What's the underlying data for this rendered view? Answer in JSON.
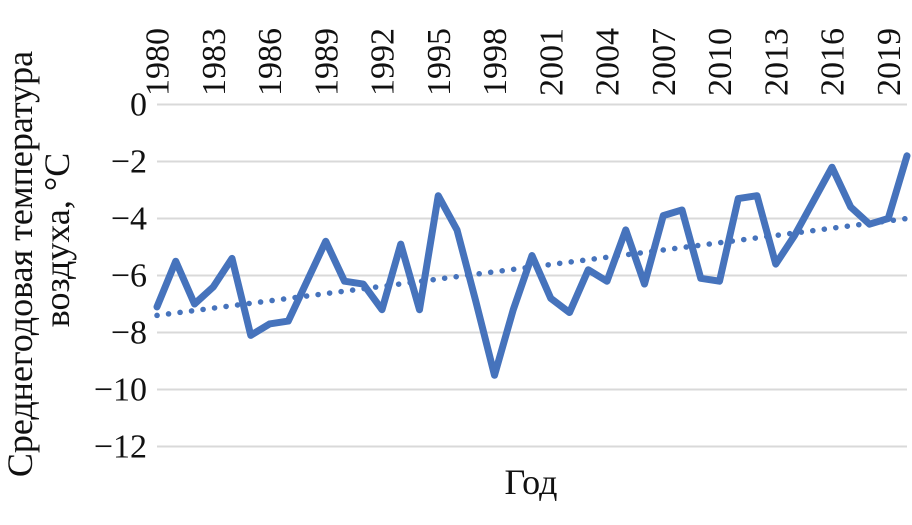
{
  "chart_data": {
    "type": "line",
    "title": "",
    "xlabel": "Год",
    "ylabel_lines": [
      "Среднегодовая температура",
      "воздуха, °С"
    ],
    "x_tick_labels": [
      "1980",
      "1983",
      "1986",
      "1989",
      "1992",
      "1995",
      "1998",
      "2001",
      "2004",
      "2007",
      "2010",
      "2013",
      "2016",
      "2019"
    ],
    "x_tick_years": [
      1980,
      1983,
      1986,
      1989,
      1992,
      1995,
      1998,
      2001,
      2004,
      2007,
      2010,
      2013,
      2016,
      2019
    ],
    "y_tick_labels": [
      "0",
      "−2",
      "−4",
      "−6",
      "−8",
      "−10",
      "−12"
    ],
    "y_tick_values": [
      0,
      -2,
      -4,
      -6,
      -8,
      -10,
      -12
    ],
    "xlim": [
      1980,
      2020
    ],
    "ylim": [
      -12,
      0
    ],
    "grid": "horizontal",
    "legend": "none",
    "colors": {
      "series_blue": "#4673BC",
      "gridline_gray": "#D9D9D9",
      "text_black": "#111111",
      "background": "#FFFFFF"
    },
    "series": [
      {
        "name": "annual-mean-air-temperature",
        "style": "solid",
        "x": [
          1980,
          1981,
          1982,
          1983,
          1984,
          1985,
          1986,
          1987,
          1988,
          1989,
          1990,
          1991,
          1992,
          1993,
          1994,
          1995,
          1996,
          1997,
          1998,
          1999,
          2000,
          2001,
          2002,
          2003,
          2004,
          2005,
          2006,
          2007,
          2008,
          2009,
          2010,
          2011,
          2012,
          2013,
          2014,
          2015,
          2016,
          2017,
          2018,
          2019,
          2020
        ],
        "values": [
          -7.1,
          -5.5,
          -7.0,
          -6.4,
          -5.4,
          -8.1,
          -7.7,
          -7.6,
          -6.2,
          -4.8,
          -6.2,
          -6.3,
          -7.2,
          -4.9,
          -7.2,
          -3.2,
          -4.4,
          -6.9,
          -9.5,
          -7.2,
          -5.3,
          -6.8,
          -7.3,
          -5.8,
          -6.2,
          -4.4,
          -6.3,
          -3.9,
          -3.7,
          -6.1,
          -6.2,
          -3.3,
          -3.2,
          -5.6,
          -4.6,
          -3.4,
          -2.2,
          -3.6,
          -4.2,
          -4.0,
          -1.8
        ]
      },
      {
        "name": "linear-trend",
        "style": "dotted",
        "x": [
          1980,
          2020
        ],
        "values": [
          -7.4,
          -4.0
        ]
      }
    ]
  }
}
